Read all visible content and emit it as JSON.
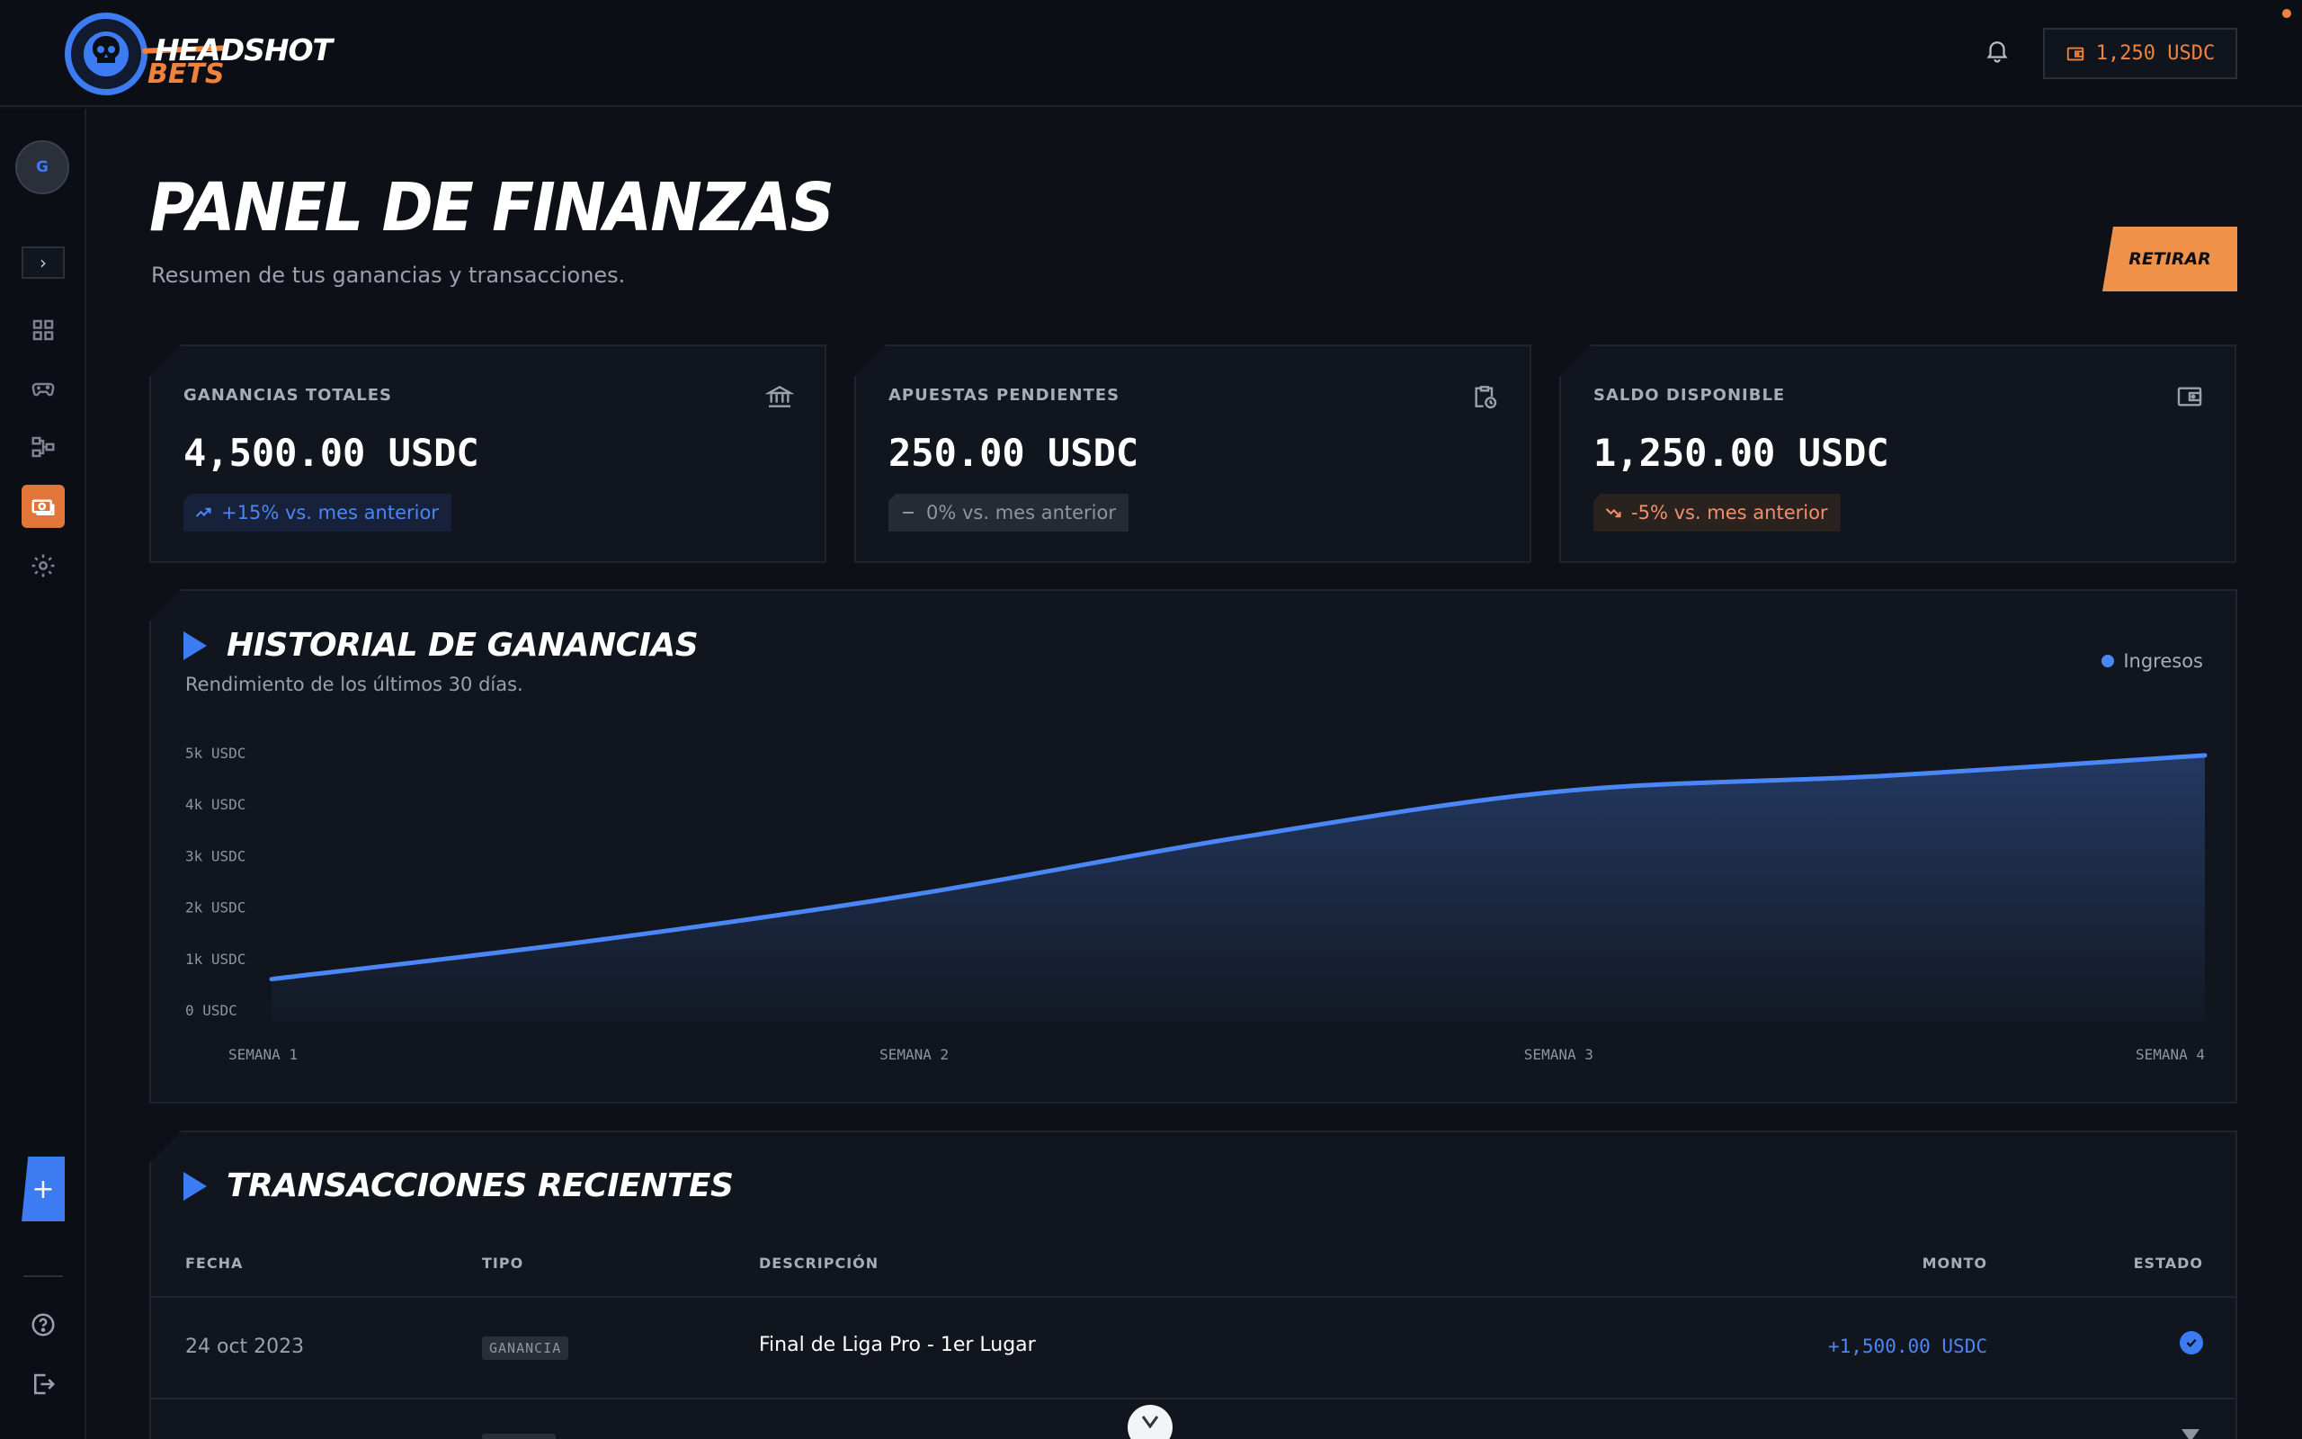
{
  "brand": {
    "name_top": "HEADSHOT",
    "name_bottom": "BETS"
  },
  "header": {
    "wallet_balance": "1,250 USDC"
  },
  "sidebar": {
    "avatar_initial": "G"
  },
  "page": {
    "title": "PANEL DE FINANZAS",
    "subtitle": "Resumen de tus ganancias y transacciones.",
    "withdraw_label": "RETIRAR"
  },
  "stats": [
    {
      "label": "GANANCIAS TOTALES",
      "value": "4,500.00 USDC",
      "delta": "+15% vs. mes anterior",
      "trend": "up",
      "icon": "bank-icon"
    },
    {
      "label": "APUESTAS PENDIENTES",
      "value": "250.00 USDC",
      "delta": "0% vs. mes anterior",
      "trend": "flat",
      "icon": "clipboard-clock-icon"
    },
    {
      "label": "SALDO DISPONIBLE",
      "value": "1,250.00 USDC",
      "delta": "-5% vs. mes anterior",
      "trend": "down",
      "icon": "wallet-icon"
    }
  ],
  "history": {
    "title": "HISTORIAL DE GANANCIAS",
    "subtitle": "Rendimiento de los últimos 30 días."
  },
  "chart_data": {
    "type": "area",
    "title": "HISTORIAL DE GANANCIAS",
    "series": [
      {
        "name": "Ingresos",
        "color": "#4a86f5"
      }
    ],
    "x": [
      1,
      1.5,
      2,
      2.5,
      3,
      3.5,
      4
    ],
    "values": [
      600,
      1350,
      2250,
      3350,
      4250,
      4550,
      4950
    ],
    "x_ticks": [
      "SEMANA 1",
      "SEMANA 2",
      "SEMANA 3",
      "SEMANA 4"
    ],
    "y_ticks": [
      "0 USDC",
      "1k USDC",
      "2k USDC",
      "3k USDC",
      "4k USDC",
      "5k USDC"
    ],
    "ylim": [
      0,
      5000
    ],
    "legend": "top-right",
    "grid": false
  },
  "transactions": {
    "title": "TRANSACCIONES RECIENTES",
    "columns": [
      "FECHA",
      "TIPO",
      "DESCRIPCIÓN",
      "MONTO",
      "ESTADO"
    ],
    "rows": [
      {
        "date": "24 oct 2023",
        "type": "GANANCIA",
        "description": "Final de Liga Pro - 1er Lugar",
        "amount": "+1,500.00 USDC",
        "status": "completed"
      }
    ]
  },
  "colors": {
    "accent_blue": "#3c7bf2",
    "accent_orange": "#f0823e",
    "background": "#0d1017",
    "panel": "#11151d"
  }
}
